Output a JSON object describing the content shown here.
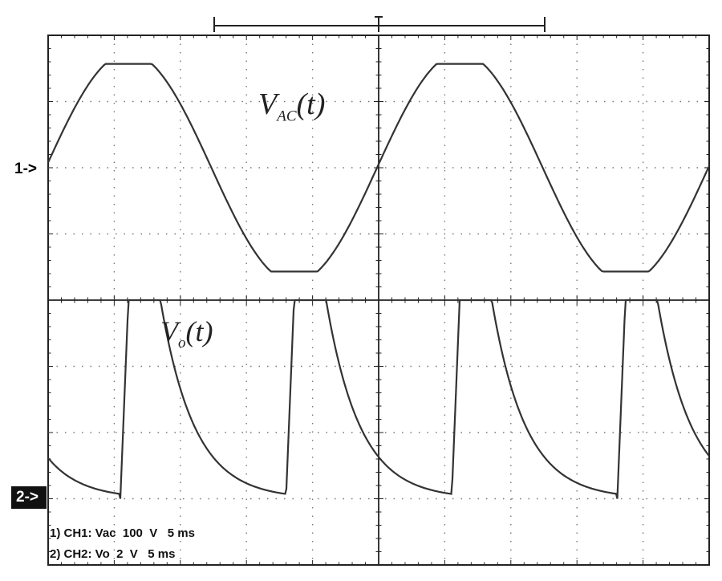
{
  "chart_data": {
    "type": "line",
    "grid": true,
    "divisions": {
      "x": 10,
      "y": 8
    },
    "channels": [
      {
        "id": "CH1",
        "marker": "1->",
        "trace_label": "V_AC(t)",
        "waveform": "sine",
        "scale_v_per_div": 100,
        "timebase_ms_per_div": 5,
        "amplitude_div": 1.6,
        "center_div_from_top": 2,
        "cycles_on_screen": 2.15
      },
      {
        "id": "CH2",
        "marker": "2->",
        "trace_label": "V_o(t)",
        "waveform": "rectified pulse",
        "scale_v_per_div": 2,
        "timebase_ms_per_div": 5,
        "high_div": 3.0,
        "ground_div_from_top": 7,
        "pulses_on_screen": 5
      }
    ],
    "settings_lines": [
      "1) CH1: Vac  100  V   5 ms",
      "2) CH2: Vo  2  V   5 ms"
    ]
  },
  "labels": {
    "ch1_marker": "1->",
    "ch2_marker": "2->",
    "vac_main": "V",
    "vac_sub": "AC",
    "vac_arg": "(t)",
    "vo_main": "V",
    "vo_sub": "o",
    "vo_arg": "(t)",
    "settings_ch1": "1) CH1: Vac  100  V   5 ms",
    "settings_ch2": "2) CH2: Vo  2  V   5 ms"
  }
}
